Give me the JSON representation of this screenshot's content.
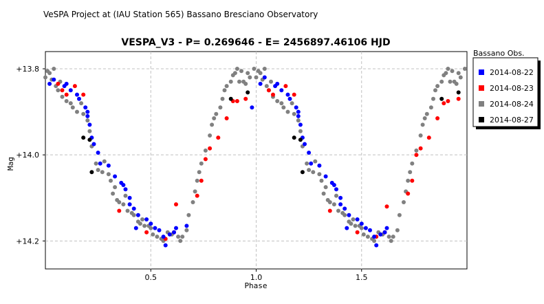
{
  "header": "VeSPA Project at (IAU Station 565) Bassano Bresciano Observatory",
  "chart_data": {
    "type": "scatter",
    "title": "VESPA_V3  -  P= 0.269646  -  E= 2456897.46106 HJD",
    "xlabel": "Phase",
    "ylabel": "Mag",
    "xlim": [
      0.0,
      2.0
    ],
    "ylim": [
      14.265,
      13.76
    ],
    "y_inverted": true,
    "x_ticks": [
      0.5,
      1.0,
      1.5
    ],
    "x_tick_labels": [
      "0.5",
      "1.0",
      "1.5"
    ],
    "y_ticks": [
      13.8,
      14.0,
      14.2
    ],
    "y_tick_labels": [
      "+13.8",
      "+14.0",
      "+14.2"
    ],
    "grid": true,
    "legend": {
      "title": "Bassano Obs.",
      "placement": "right",
      "entries": [
        {
          "label": "2014-08-22",
          "color": "#0000ff"
        },
        {
          "label": "2014-08-23",
          "color": "#ff0000"
        },
        {
          "label": "2014-08-24",
          "color": "#808080"
        },
        {
          "label": "2014-08-27",
          "color": "#000000"
        }
      ]
    },
    "series": [
      {
        "name": "2014-08-22",
        "color": "#0000ff",
        "points": [
          [
            0.02,
            13.835
          ],
          [
            0.04,
            13.825
          ],
          [
            0.09,
            13.84
          ],
          [
            0.1,
            13.835
          ],
          [
            0.12,
            13.85
          ],
          [
            0.15,
            13.86
          ],
          [
            0.16,
            13.87
          ],
          [
            0.19,
            13.89
          ],
          [
            0.2,
            13.9
          ],
          [
            0.2,
            13.91
          ],
          [
            0.21,
            13.93
          ],
          [
            0.22,
            13.96
          ],
          [
            0.23,
            13.975
          ],
          [
            0.25,
            13.995
          ],
          [
            0.26,
            14.02
          ],
          [
            0.3,
            14.025
          ],
          [
            0.33,
            14.05
          ],
          [
            0.36,
            14.065
          ],
          [
            0.37,
            14.07
          ],
          [
            0.38,
            14.08
          ],
          [
            0.4,
            14.1
          ],
          [
            0.4,
            14.115
          ],
          [
            0.42,
            14.125
          ],
          [
            0.43,
            14.17
          ],
          [
            0.44,
            14.14
          ],
          [
            0.48,
            14.15
          ],
          [
            0.5,
            14.16
          ],
          [
            0.52,
            14.17
          ],
          [
            0.54,
            14.175
          ],
          [
            0.56,
            14.19
          ],
          [
            0.57,
            14.21
          ],
          [
            0.59,
            14.185
          ],
          [
            0.61,
            14.18
          ],
          [
            0.62,
            14.17
          ],
          [
            0.67,
            14.165
          ],
          [
            0.98,
            13.89
          ],
          [
            1.02,
            13.835
          ],
          [
            1.04,
            13.82
          ],
          [
            1.09,
            13.84
          ],
          [
            1.1,
            13.835
          ],
          [
            1.12,
            13.85
          ],
          [
            1.15,
            13.86
          ],
          [
            1.16,
            13.87
          ],
          [
            1.19,
            13.89
          ],
          [
            1.2,
            13.9
          ],
          [
            1.2,
            13.91
          ],
          [
            1.21,
            13.93
          ],
          [
            1.22,
            13.96
          ],
          [
            1.23,
            13.975
          ],
          [
            1.25,
            13.995
          ],
          [
            1.26,
            14.02
          ],
          [
            1.3,
            14.025
          ],
          [
            1.33,
            14.05
          ],
          [
            1.36,
            14.065
          ],
          [
            1.37,
            14.07
          ],
          [
            1.38,
            14.08
          ],
          [
            1.4,
            14.1
          ],
          [
            1.4,
            14.115
          ],
          [
            1.42,
            14.125
          ],
          [
            1.43,
            14.17
          ],
          [
            1.44,
            14.14
          ],
          [
            1.48,
            14.15
          ],
          [
            1.5,
            14.16
          ],
          [
            1.52,
            14.17
          ],
          [
            1.54,
            14.175
          ],
          [
            1.56,
            14.19
          ],
          [
            1.57,
            14.21
          ],
          [
            1.59,
            14.185
          ],
          [
            1.61,
            14.18
          ],
          [
            1.62,
            14.17
          ]
        ]
      },
      {
        "name": "2014-08-23",
        "color": "#ff0000",
        "points": [
          [
            0.06,
            13.835
          ],
          [
            0.08,
            13.85
          ],
          [
            0.1,
            13.86
          ],
          [
            0.14,
            13.84
          ],
          [
            0.18,
            13.86
          ],
          [
            0.35,
            14.13
          ],
          [
            0.48,
            14.18
          ],
          [
            0.57,
            14.195
          ],
          [
            0.61,
            14.18
          ],
          [
            0.62,
            14.115
          ],
          [
            0.72,
            14.095
          ],
          [
            0.74,
            14.06
          ],
          [
            0.76,
            14.01
          ],
          [
            0.78,
            13.985
          ],
          [
            0.82,
            13.96
          ],
          [
            0.86,
            13.915
          ],
          [
            0.89,
            13.875
          ],
          [
            0.91,
            13.875
          ],
          [
            0.95,
            13.87
          ],
          [
            1.06,
            13.85
          ],
          [
            1.08,
            13.86
          ],
          [
            1.14,
            13.84
          ],
          [
            1.18,
            13.86
          ],
          [
            1.35,
            14.13
          ],
          [
            1.48,
            14.18
          ],
          [
            1.57,
            14.19
          ],
          [
            1.61,
            14.18
          ],
          [
            1.62,
            14.12
          ],
          [
            1.72,
            14.09
          ],
          [
            1.74,
            14.06
          ],
          [
            1.76,
            14.0
          ],
          [
            1.78,
            13.985
          ],
          [
            1.82,
            13.96
          ],
          [
            1.86,
            13.915
          ],
          [
            1.89,
            13.88
          ],
          [
            1.91,
            13.875
          ],
          [
            1.96,
            13.87
          ]
        ]
      },
      {
        "name": "2014-08-24",
        "color": "#808080",
        "points": [
          [
            0.0,
            13.82
          ],
          [
            0.01,
            13.805
          ],
          [
            0.02,
            13.81
          ],
          [
            0.04,
            13.8
          ],
          [
            0.03,
            13.825
          ],
          [
            0.05,
            13.84
          ],
          [
            0.06,
            13.85
          ],
          [
            0.07,
            13.83
          ],
          [
            0.08,
            13.865
          ],
          [
            0.1,
            13.875
          ],
          [
            0.12,
            13.88
          ],
          [
            0.13,
            13.89
          ],
          [
            0.15,
            13.9
          ],
          [
            0.17,
            13.88
          ],
          [
            0.18,
            13.905
          ],
          [
            0.2,
            13.92
          ],
          [
            0.21,
            13.945
          ],
          [
            0.22,
            13.98
          ],
          [
            0.24,
            14.02
          ],
          [
            0.25,
            14.035
          ],
          [
            0.27,
            14.04
          ],
          [
            0.28,
            14.015
          ],
          [
            0.3,
            14.045
          ],
          [
            0.31,
            14.06
          ],
          [
            0.32,
            14.09
          ],
          [
            0.33,
            14.075
          ],
          [
            0.34,
            14.105
          ],
          [
            0.35,
            14.11
          ],
          [
            0.37,
            14.115
          ],
          [
            0.38,
            14.095
          ],
          [
            0.39,
            14.13
          ],
          [
            0.41,
            14.135
          ],
          [
            0.42,
            14.14
          ],
          [
            0.44,
            14.155
          ],
          [
            0.45,
            14.16
          ],
          [
            0.46,
            14.15
          ],
          [
            0.47,
            14.165
          ],
          [
            0.49,
            14.165
          ],
          [
            0.5,
            14.17
          ],
          [
            0.51,
            14.185
          ],
          [
            0.53,
            14.19
          ],
          [
            0.55,
            14.195
          ],
          [
            0.56,
            14.2
          ],
          [
            0.58,
            14.18
          ],
          [
            0.6,
            14.185
          ],
          [
            0.63,
            14.19
          ],
          [
            0.64,
            14.2
          ],
          [
            0.65,
            14.19
          ],
          [
            0.67,
            14.175
          ],
          [
            0.68,
            14.14
          ],
          [
            0.7,
            14.11
          ],
          [
            0.71,
            14.085
          ],
          [
            0.72,
            14.06
          ],
          [
            0.73,
            14.04
          ],
          [
            0.74,
            14.02
          ],
          [
            0.76,
            13.99
          ],
          [
            0.78,
            13.955
          ],
          [
            0.79,
            13.93
          ],
          [
            0.8,
            13.915
          ],
          [
            0.81,
            13.905
          ],
          [
            0.83,
            13.89
          ],
          [
            0.84,
            13.87
          ],
          [
            0.85,
            13.85
          ],
          [
            0.86,
            13.84
          ],
          [
            0.88,
            13.83
          ],
          [
            0.89,
            13.815
          ],
          [
            0.9,
            13.81
          ],
          [
            0.91,
            13.8
          ],
          [
            0.92,
            13.83
          ],
          [
            0.93,
            13.805
          ],
          [
            0.94,
            13.83
          ],
          [
            0.95,
            13.835
          ],
          [
            0.96,
            13.81
          ],
          [
            0.97,
            13.82
          ],
          [
            0.99,
            13.8
          ],
          [
            1.0,
            13.82
          ],
          [
            1.01,
            13.805
          ],
          [
            1.02,
            13.81
          ],
          [
            1.04,
            13.8
          ],
          [
            1.03,
            13.825
          ],
          [
            1.05,
            13.84
          ],
          [
            1.06,
            13.85
          ],
          [
            1.07,
            13.83
          ],
          [
            1.08,
            13.865
          ],
          [
            1.1,
            13.875
          ],
          [
            1.12,
            13.88
          ],
          [
            1.13,
            13.89
          ],
          [
            1.15,
            13.9
          ],
          [
            1.17,
            13.88
          ],
          [
            1.18,
            13.905
          ],
          [
            1.2,
            13.92
          ],
          [
            1.21,
            13.945
          ],
          [
            1.22,
            13.98
          ],
          [
            1.24,
            14.02
          ],
          [
            1.25,
            14.035
          ],
          [
            1.27,
            14.04
          ],
          [
            1.28,
            14.015
          ],
          [
            1.3,
            14.045
          ],
          [
            1.31,
            14.06
          ],
          [
            1.32,
            14.09
          ],
          [
            1.33,
            14.075
          ],
          [
            1.34,
            14.105
          ],
          [
            1.35,
            14.11
          ],
          [
            1.37,
            14.115
          ],
          [
            1.38,
            14.095
          ],
          [
            1.39,
            14.13
          ],
          [
            1.41,
            14.135
          ],
          [
            1.42,
            14.14
          ],
          [
            1.44,
            14.155
          ],
          [
            1.45,
            14.16
          ],
          [
            1.46,
            14.15
          ],
          [
            1.47,
            14.165
          ],
          [
            1.49,
            14.165
          ],
          [
            1.5,
            14.17
          ],
          [
            1.51,
            14.185
          ],
          [
            1.53,
            14.19
          ],
          [
            1.55,
            14.195
          ],
          [
            1.56,
            14.2
          ],
          [
            1.58,
            14.18
          ],
          [
            1.6,
            14.185
          ],
          [
            1.63,
            14.19
          ],
          [
            1.64,
            14.2
          ],
          [
            1.65,
            14.19
          ],
          [
            1.67,
            14.175
          ],
          [
            1.68,
            14.14
          ],
          [
            1.7,
            14.11
          ],
          [
            1.71,
            14.085
          ],
          [
            1.72,
            14.06
          ],
          [
            1.73,
            14.04
          ],
          [
            1.74,
            14.02
          ],
          [
            1.76,
            13.99
          ],
          [
            1.78,
            13.955
          ],
          [
            1.79,
            13.93
          ],
          [
            1.8,
            13.915
          ],
          [
            1.81,
            13.905
          ],
          [
            1.83,
            13.89
          ],
          [
            1.84,
            13.87
          ],
          [
            1.85,
            13.85
          ],
          [
            1.86,
            13.84
          ],
          [
            1.88,
            13.83
          ],
          [
            1.89,
            13.815
          ],
          [
            1.9,
            13.81
          ],
          [
            1.91,
            13.8
          ],
          [
            1.92,
            13.83
          ],
          [
            1.93,
            13.805
          ],
          [
            1.94,
            13.83
          ],
          [
            1.95,
            13.835
          ],
          [
            1.96,
            13.81
          ],
          [
            1.97,
            13.82
          ],
          [
            1.99,
            13.8
          ]
        ]
      },
      {
        "name": "2014-08-27",
        "color": "#000000",
        "points": [
          [
            0.18,
            13.96
          ],
          [
            0.21,
            13.965
          ],
          [
            0.22,
            14.04
          ],
          [
            0.88,
            13.87
          ],
          [
            0.96,
            13.855
          ],
          [
            1.18,
            13.96
          ],
          [
            1.21,
            13.965
          ],
          [
            1.22,
            14.04
          ],
          [
            1.88,
            13.87
          ],
          [
            1.96,
            13.855
          ]
        ]
      }
    ]
  }
}
